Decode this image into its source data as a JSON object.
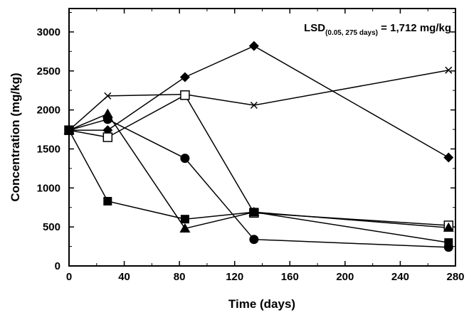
{
  "chart_data": {
    "type": "scatter",
    "xlabel": "Time (days)",
    "ylabel": "Concentration (mg/kg)",
    "xlim": [
      0,
      280
    ],
    "ylim": [
      0,
      3300
    ],
    "xticks": [
      0,
      40,
      80,
      120,
      160,
      200,
      240,
      280
    ],
    "yticks": [
      0,
      500,
      1000,
      1500,
      2000,
      2500,
      3000
    ],
    "grid": false,
    "lines": "connected",
    "annotation": {
      "prefix": "LSD",
      "subscript": "(0.05, 275 days)",
      "suffix": " = 1,712 mg/kg"
    },
    "series": [
      {
        "marker": "diamond-filled",
        "x": [
          0,
          28,
          84,
          134,
          275
        ],
        "y": [
          1740,
          1740,
          2420,
          2820,
          1390
        ]
      },
      {
        "marker": "x",
        "x": [
          0,
          28,
          84,
          134,
          275
        ],
        "y": [
          1740,
          2180,
          2200,
          2060,
          2510
        ]
      },
      {
        "marker": "square-open",
        "x": [
          0,
          28,
          84,
          134,
          275
        ],
        "y": [
          1740,
          1650,
          2190,
          680,
          520
        ]
      },
      {
        "marker": "circle-filled",
        "x": [
          0,
          28,
          84,
          134,
          275
        ],
        "y": [
          1740,
          1880,
          1380,
          340,
          240
        ]
      },
      {
        "marker": "triangle-filled",
        "x": [
          0,
          28,
          84,
          134,
          275
        ],
        "y": [
          1740,
          1950,
          480,
          690,
          490
        ]
      },
      {
        "marker": "square-filled",
        "x": [
          0,
          28,
          84,
          134,
          275
        ],
        "y": [
          1740,
          830,
          600,
          690,
          300
        ]
      }
    ]
  }
}
